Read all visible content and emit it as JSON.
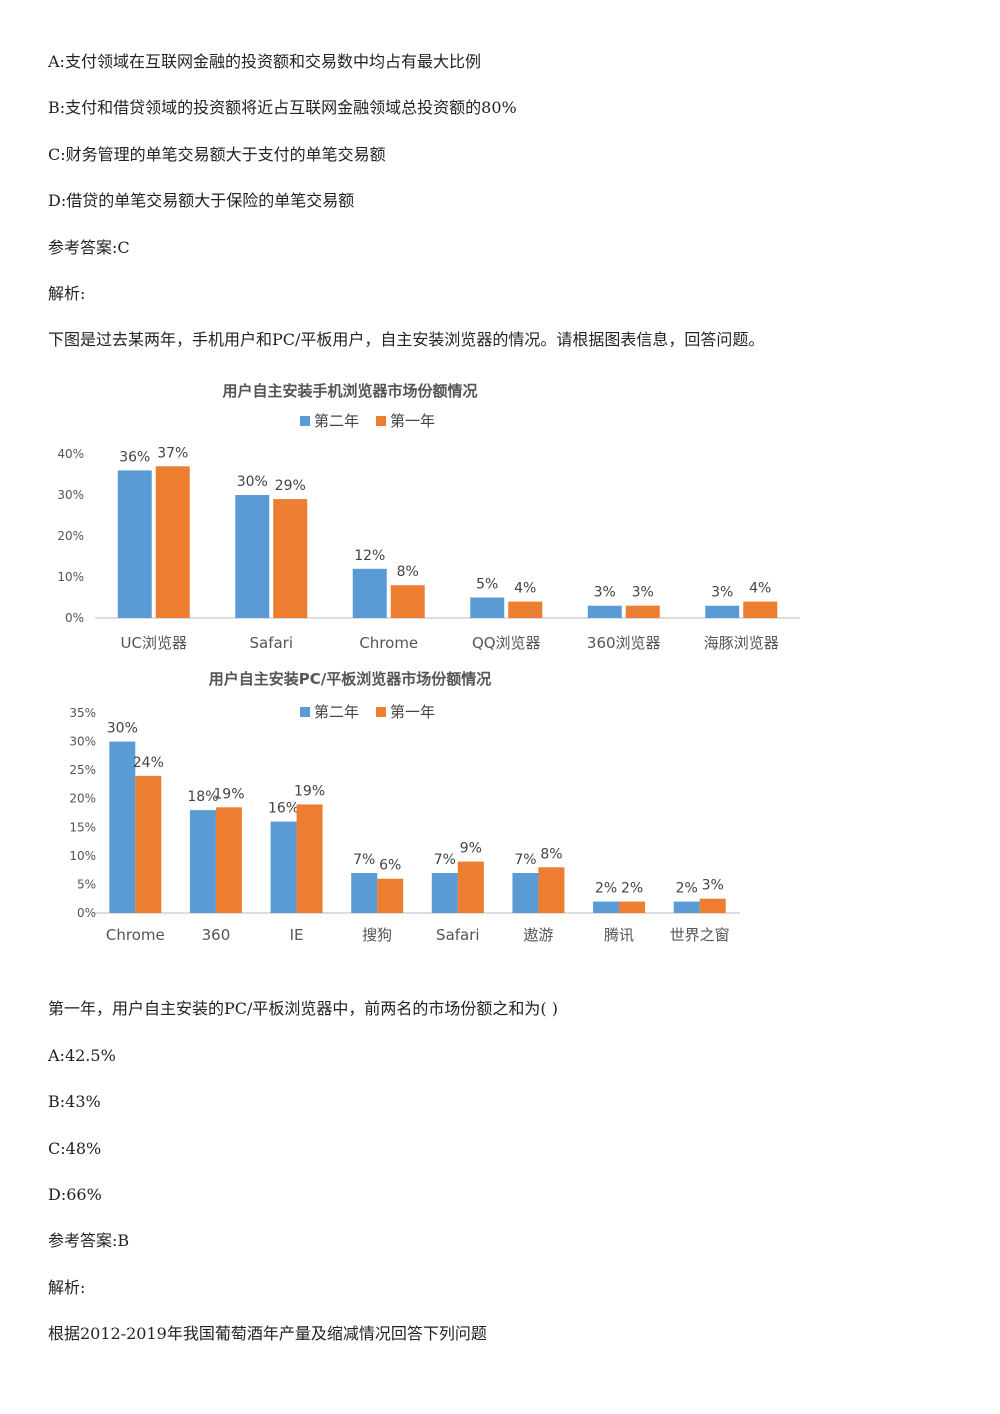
{
  "lines": {
    "l1": "A:支付领域在互联网金融的投资额和交易数中均占有最大比例",
    "l2": "B:支付和借贷领域的投资额将近占互联网金融领域总投资额的80%",
    "l3": "C:财务管理的单笔交易额大于支付的单笔交易额",
    "l4": "D:借贷的单笔交易额大于保险的单笔交易额",
    "l5": "参考答案:C",
    "l6": "解析:",
    "l7": "下图是过去某两年，手机用户和PC/平板用户，自主安装浏览器的情况。请根据图表信息，回答问题。",
    "q1": "第一年，用户自主安装的PC/平板浏览器中，前两名的市场份额之和为( )",
    "o1": "A:42.5%",
    "o2": "B:43%",
    "o3": "C:48%",
    "o4": "D:66%",
    "a2": "参考答案:B",
    "j2": "解析:",
    "l8": "根据2012-2019年我国葡萄酒年产量及缩减情况回答下列问题"
  },
  "chart_data": [
    {
      "type": "bar",
      "title": "用户自主安装手机浏览器市场份额情况",
      "categories": [
        "UC浏览器",
        "Safari",
        "Chrome",
        "QQ浏览器",
        "360浏览器",
        "海豚浏览器"
      ],
      "series": [
        {
          "name": "第二年",
          "values": [
            36,
            30,
            12,
            5,
            3,
            3
          ],
          "labels": [
            "36%",
            "30%",
            "12%",
            "5%",
            "3%",
            "3%"
          ],
          "color": "#5b9bd5"
        },
        {
          "name": "第一年",
          "values": [
            37,
            29,
            8,
            4,
            3,
            4
          ],
          "labels": [
            "37%",
            "29%",
            "8%",
            "4%",
            "3%",
            "4%"
          ],
          "color": "#ed7d31"
        }
      ],
      "yticks": [
        "0%",
        "10%",
        "20%",
        "30%",
        "40%"
      ],
      "ylim": [
        0,
        40
      ],
      "legend": "top-center",
      "grid": false
    },
    {
      "type": "bar",
      "title": "用户自主安装PC/平板浏览器市场份额情况",
      "categories": [
        "Chrome",
        "360",
        "IE",
        "搜狗",
        "Safari",
        "遨游",
        "腾讯",
        "世界之窗"
      ],
      "series": [
        {
          "name": "第二年",
          "values": [
            30,
            18,
            16,
            7,
            7,
            7,
            2,
            2
          ],
          "labels": [
            "30%",
            "18%",
            "16%",
            "7%",
            "7%",
            "7%",
            "2%",
            "2%"
          ],
          "color": "#5b9bd5"
        },
        {
          "name": "第一年",
          "values": [
            24,
            18.5,
            19,
            6,
            9,
            8,
            2,
            2.5
          ],
          "labels": [
            "24%",
            "19%",
            "19%",
            "6%",
            "9%",
            "8%",
            "2%",
            "3%"
          ],
          "color": "#ed7d31"
        }
      ],
      "yticks": [
        "0%",
        "5%",
        "10%",
        "15%",
        "20%",
        "25%",
        "30%",
        "35%"
      ],
      "ylim": [
        0,
        35
      ],
      "legend": "top-center",
      "grid": false
    }
  ]
}
